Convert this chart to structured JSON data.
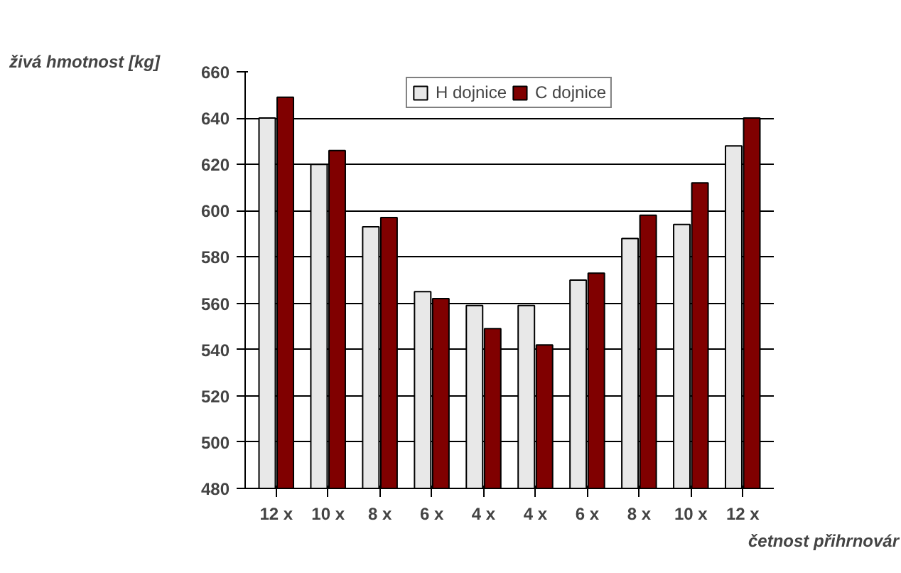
{
  "chart_data": {
    "type": "bar",
    "ylabel": "živá hmotnost [kg]",
    "xlabel": "četnost přihrnovár",
    "categories": [
      "12 x",
      "10 x",
      "8 x",
      "6 x",
      "4 x",
      "4 x",
      "6 x",
      "8 x",
      "10 x",
      "12 x"
    ],
    "series": [
      {
        "name": "H dojnice",
        "color": "#e8e8e8",
        "values": [
          640,
          620,
          593,
          565,
          559,
          559,
          570,
          588,
          594,
          628
        ]
      },
      {
        "name": "C dojnice",
        "color": "#800000",
        "values": [
          649,
          626,
          597,
          562,
          549,
          542,
          573,
          598,
          612,
          640
        ]
      }
    ],
    "ylim": [
      480,
      660
    ],
    "yticks": [
      480,
      500,
      520,
      540,
      560,
      580,
      600,
      620,
      640,
      660
    ],
    "grid": "y",
    "legend": "top"
  }
}
